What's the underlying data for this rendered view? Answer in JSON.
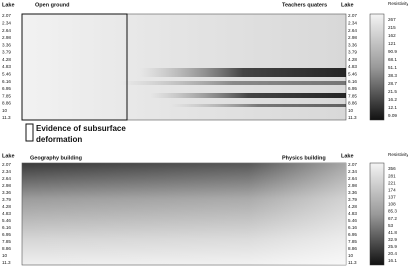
{
  "panels": [
    {
      "lake_left": "Lake",
      "left_label": "Open ground",
      "right_label": "Teachers quaters",
      "lake_right": "Lake",
      "depths": [
        "2.07",
        "2.34",
        "2.64",
        "2.98",
        "3.36",
        "3.79",
        "4.28",
        "4.83",
        "5.46",
        "6.16",
        "6.95",
        "7.85",
        "8.86",
        "10",
        "11.3"
      ],
      "colorbar_title": "Resistivity in Ohm",
      "colorbar_labels": [
        "267",
        "215",
        "162",
        "121",
        "90.9",
        "68.1",
        "51.1",
        "38.3",
        "28.7",
        "21.5",
        "16.2",
        "12.1",
        "9.09"
      ]
    },
    {
      "lake_left": "Lake",
      "left_label": "Geography building",
      "right_label": "Physics building",
      "lake_right": "Lake",
      "depths": [
        "2.07",
        "2.34",
        "2.64",
        "2.98",
        "3.36",
        "3.79",
        "4.28",
        "4.83",
        "5.46",
        "6.16",
        "6.95",
        "7.85",
        "8.86",
        "10",
        "11.3"
      ],
      "colorbar_title": "Resistivity in Ohm",
      "colorbar_labels": [
        "356",
        "281",
        "221",
        "174",
        "137",
        "108",
        "85.3",
        "67.2",
        "53",
        "41.8",
        "32.9",
        "25.9",
        "20.4",
        "16.1"
      ]
    }
  ],
  "legend": {
    "line1": "Evidence of subsurface",
    "line2": "deformation"
  }
}
